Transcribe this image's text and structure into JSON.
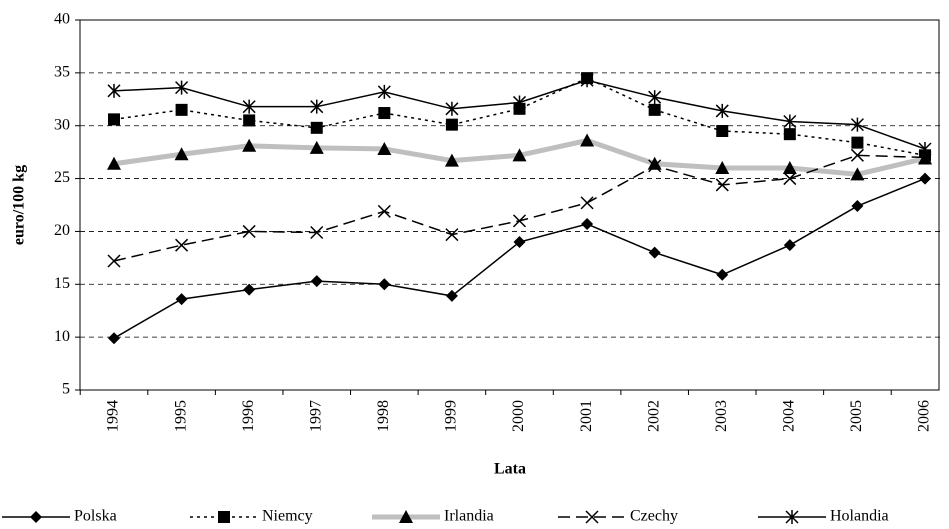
{
  "chart_data": {
    "type": "line",
    "y_label": "euro/100 kg",
    "x_label": "Lata",
    "categories": [
      "1994",
      "1995",
      "1996",
      "1997",
      "1998",
      "1999",
      "2000",
      "2001",
      "2002",
      "2003",
      "2004",
      "2005",
      "2006"
    ],
    "ylim": [
      5,
      40
    ],
    "yticks": [
      5,
      10,
      15,
      20,
      25,
      30,
      35,
      40
    ],
    "grid": true,
    "legend": "bottom",
    "series": [
      {
        "name": "Polska",
        "color": "#000000",
        "marker": "diamond",
        "dash": "solid",
        "values": [
          9.9,
          13.6,
          14.5,
          15.3,
          15.0,
          13.9,
          19.0,
          20.7,
          18.0,
          15.9,
          18.7,
          22.4,
          25.0
        ]
      },
      {
        "name": "Niemcy",
        "color": "#000000",
        "marker": "square",
        "dash": "dotted",
        "values": [
          30.6,
          31.5,
          30.5,
          29.8,
          31.2,
          30.1,
          31.6,
          34.5,
          31.5,
          29.5,
          29.2,
          28.4,
          27.2
        ]
      },
      {
        "name": "Irlandia",
        "color": "#bfbfbf",
        "marker": "triangle",
        "dash": "solid",
        "values": [
          26.4,
          27.3,
          28.1,
          27.9,
          27.8,
          26.7,
          27.2,
          28.6,
          26.4,
          26.0,
          26.0,
          25.4,
          26.9
        ]
      },
      {
        "name": "Czechy",
        "color": "#000000",
        "marker": "x",
        "dash": "dashed",
        "values": [
          17.2,
          18.7,
          20.0,
          19.9,
          21.9,
          19.7,
          21.0,
          22.7,
          26.2,
          24.4,
          25.0,
          27.2,
          27.0
        ]
      },
      {
        "name": "Holandia",
        "color": "#000000",
        "marker": "star",
        "dash": "solid",
        "values": [
          33.3,
          33.6,
          31.8,
          31.8,
          33.2,
          31.6,
          32.2,
          34.3,
          32.7,
          31.4,
          30.4,
          30.1,
          27.8
        ]
      }
    ]
  }
}
